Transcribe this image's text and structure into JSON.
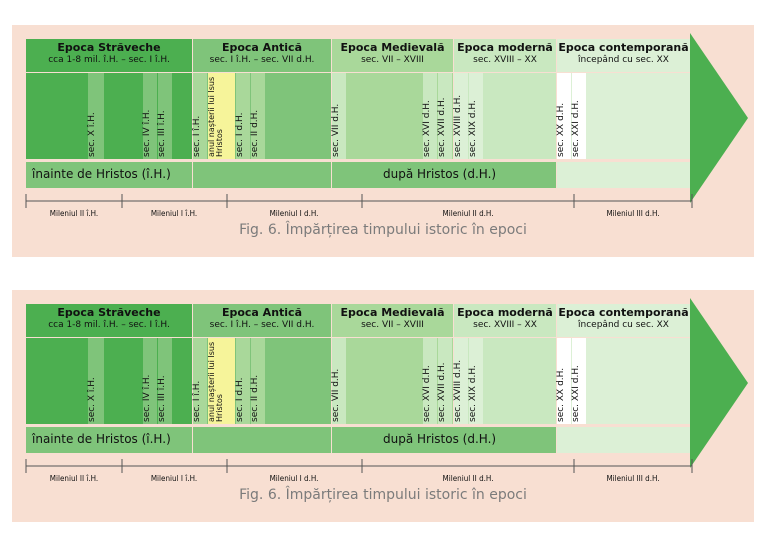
{
  "figure": {
    "caption": "Fig. 6. Împărțirea timpului istoric în epoci",
    "colors": {
      "background": "#f8dfd2",
      "dark_green": "#4caf50",
      "medium_green": "#7fc47a",
      "light_green": "#a9d89a",
      "pale_green": "#c9e8c0",
      "palest_green": "#dcf0d6",
      "birth_highlight": "#f6f49a",
      "arrow": "#4caf50"
    },
    "epochs": [
      {
        "title": "Epoca Străveche",
        "subtitle": "cca 1-8 mil. î.H. – sec. I î.H."
      },
      {
        "title": "Epoca Antică",
        "subtitle": "sec. I î.H. – sec. VII d.H."
      },
      {
        "title": "Epoca Medievală",
        "subtitle": "sec. VII – XVIII"
      },
      {
        "title": "Epoca modernă",
        "subtitle": "sec. XVIII – XX"
      },
      {
        "title": "Epoca contemporană",
        "subtitle": "începând cu sec. XX"
      }
    ],
    "centuries": [
      {
        "label": "sec. X î.H."
      },
      {
        "label": "sec. IV î.H."
      },
      {
        "label": "sec. III î.H."
      },
      {
        "label": "sec. I î.H."
      },
      {
        "label": "anul nașterii lui Isus Hristos"
      },
      {
        "label": "sec. I d.H."
      },
      {
        "label": "sec. II d.H."
      },
      {
        "label": "sec. VII d.H."
      },
      {
        "label": "sec. XVI d.H."
      },
      {
        "label": "sec. XVII d.H."
      },
      {
        "label": "sec. XVIII d.H."
      },
      {
        "label": "sec. XIX d.H."
      },
      {
        "label": "sec. XX d.H."
      },
      {
        "label": "sec. XXI d.H."
      }
    ],
    "bar": {
      "before": "înainte de Hristos (î.H.)",
      "after": "după Hristos (d.H.)"
    },
    "millennia": [
      "Mileniul II î.H.",
      "Mileniul I î.H.",
      "Mileniul I d.H.",
      "Mileniul II d.H.",
      "Mileniul III d.H."
    ]
  }
}
